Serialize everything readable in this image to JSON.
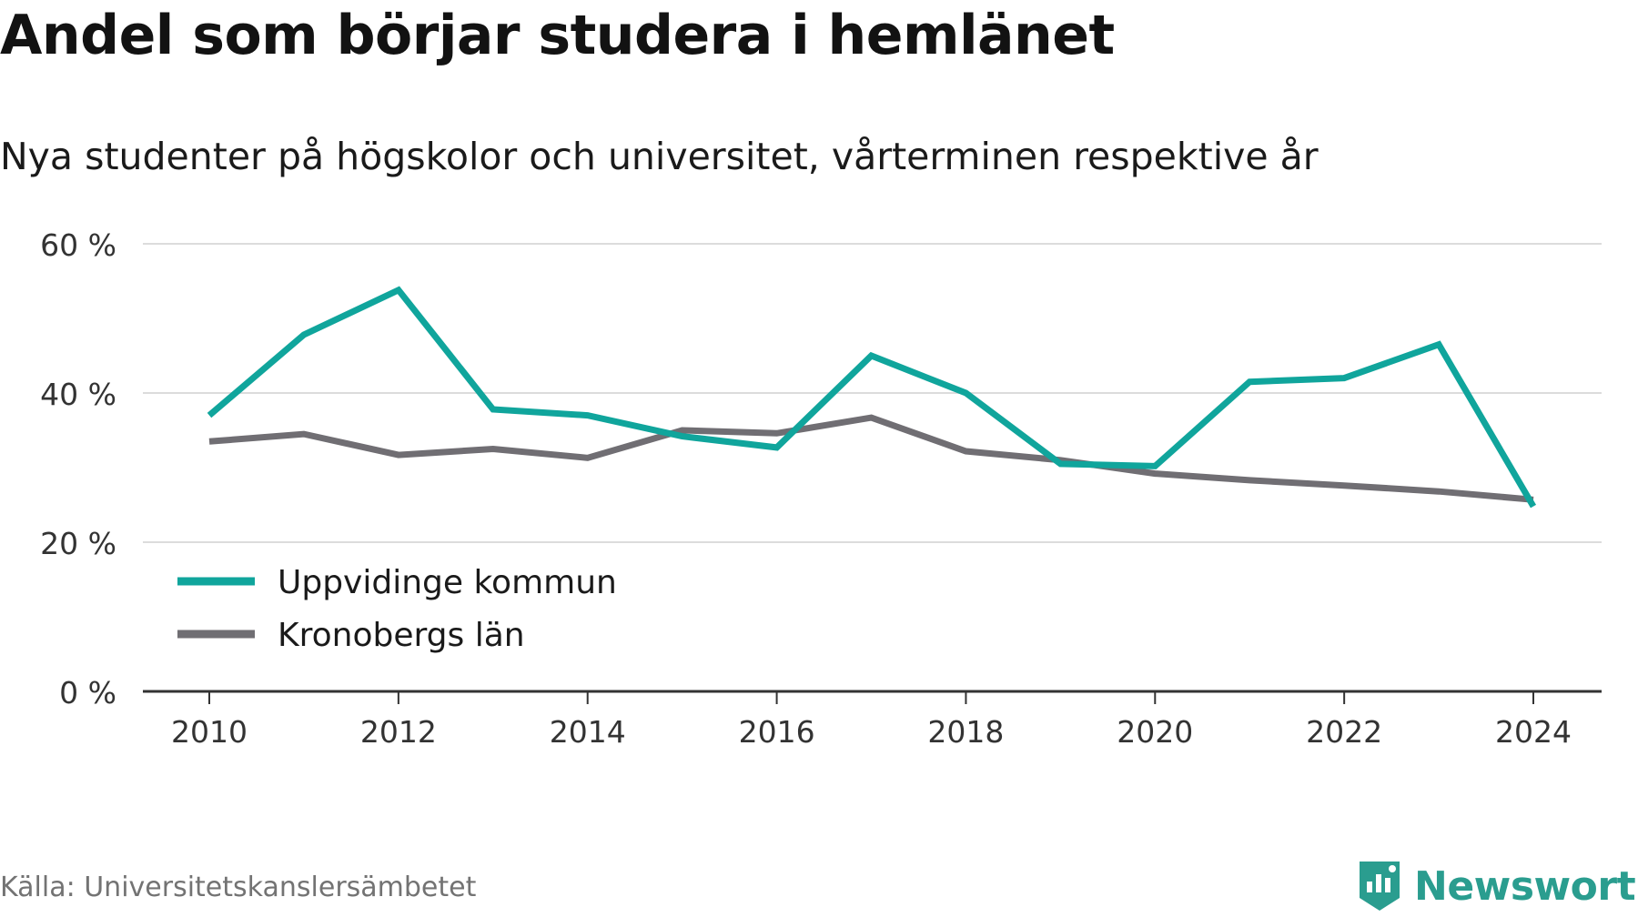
{
  "title": "Andel som börjar studera i hemlänet",
  "subtitle": "Nya studenter på högskolor och universitet, vårterminen respektive år",
  "source": "Källa: Universitetskanslersämbetet",
  "brand": {
    "name": "Newsworthy",
    "icon": "newsworthy-logo-icon",
    "color": "#2a9d8f"
  },
  "chart_data": {
    "type": "line",
    "x": [
      2010,
      2011,
      2012,
      2013,
      2014,
      2015,
      2016,
      2017,
      2018,
      2019,
      2020,
      2021,
      2022,
      2023,
      2024
    ],
    "series": [
      {
        "name": "Uppvidinge kommun",
        "color": "#10a59c",
        "values": [
          37.0,
          47.8,
          53.8,
          37.8,
          37.0,
          34.2,
          32.7,
          45.0,
          40.0,
          30.5,
          30.2,
          41.5,
          42.0,
          46.5,
          24.8
        ]
      },
      {
        "name": "Kronobergs län",
        "color": "#706e73",
        "values": [
          33.5,
          34.5,
          31.7,
          32.5,
          31.3,
          35.0,
          34.6,
          36.7,
          32.2,
          31.0,
          29.2,
          28.3,
          27.6,
          26.8,
          25.7
        ]
      }
    ],
    "ylim": [
      0,
      60
    ],
    "yticks": [
      0,
      20,
      40,
      60
    ],
    "ytick_labels": [
      "0 %",
      "20 %",
      "40 %",
      "60 %"
    ],
    "xticks": [
      2010,
      2012,
      2014,
      2016,
      2018,
      2020,
      2022,
      2024
    ],
    "xtick_labels": [
      "2010",
      "2012",
      "2014",
      "2016",
      "2018",
      "2020",
      "2022",
      "2024"
    ],
    "grid": true,
    "legend": "bottom-left"
  }
}
